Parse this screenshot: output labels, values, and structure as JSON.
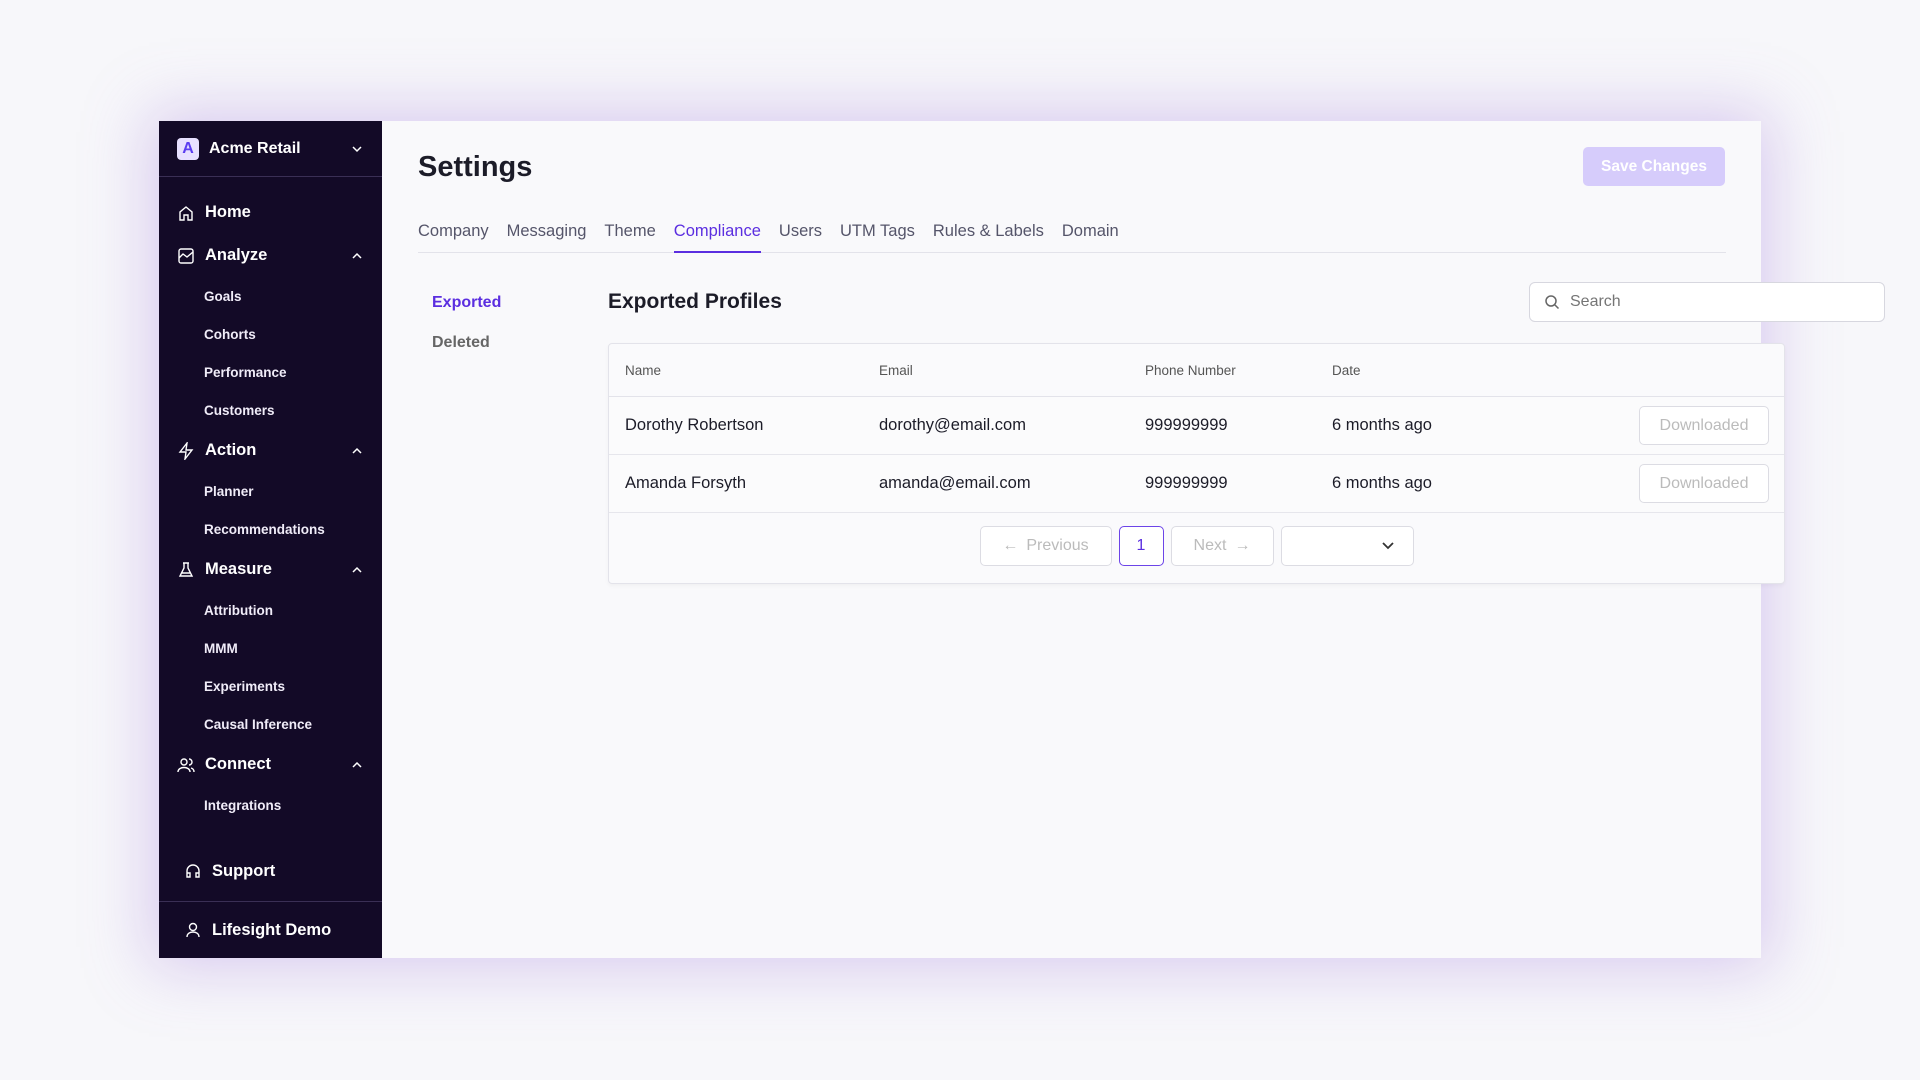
{
  "org": {
    "name": "Acme Retail"
  },
  "sidebar": {
    "home": "Home",
    "sections": [
      {
        "label": "Analyze",
        "icon": "chart-icon",
        "items": [
          "Goals",
          "Cohorts",
          "Performance",
          "Customers"
        ]
      },
      {
        "label": "Action",
        "icon": "lightning-icon",
        "items": [
          "Planner",
          "Recommendations"
        ]
      },
      {
        "label": "Measure",
        "icon": "flask-icon",
        "items": [
          "Attribution",
          "MMM",
          "Experiments",
          "Causal Inference"
        ]
      },
      {
        "label": "Connect",
        "icon": "users-icon",
        "items": [
          "Integrations"
        ]
      }
    ],
    "support": "Support",
    "user": "Lifesight Demo"
  },
  "header": {
    "title": "Settings",
    "save_label": "Save Changes"
  },
  "tabs": [
    "Company",
    "Messaging",
    "Theme",
    "Compliance",
    "Users",
    "UTM Tags",
    "Rules & Labels",
    "Domain"
  ],
  "active_tab": "Compliance",
  "subnav": [
    "Exported",
    "Deleted"
  ],
  "section_title": "Exported Profiles",
  "search": {
    "placeholder": "Search",
    "value": ""
  },
  "table": {
    "columns": [
      "Name",
      "Email",
      "Phone Number",
      "Date"
    ],
    "rows": [
      {
        "name": "Dorothy Robertson",
        "email": "dorothy@email.com",
        "phone": "999999999",
        "date": "6 months ago",
        "action": "Downloaded"
      },
      {
        "name": "Amanda Forsyth",
        "email": "amanda@email.com",
        "phone": "999999999",
        "date": "6 months ago",
        "action": "Downloaded"
      }
    ]
  },
  "pagination": {
    "previous": "Previous",
    "next": "Next",
    "page": "1",
    "page_size": ""
  },
  "colors": {
    "sidebar": "#130a27",
    "accent": "#5b2ee0",
    "save_disabled": "#d6ccfb"
  }
}
